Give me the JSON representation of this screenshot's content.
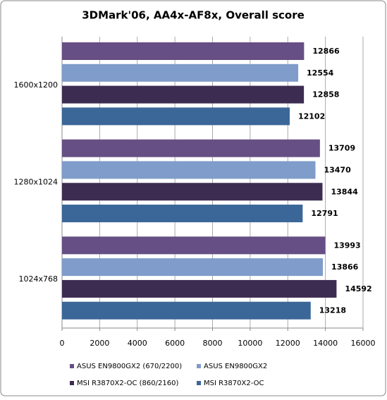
{
  "chart_data": {
    "type": "bar",
    "orientation": "horizontal",
    "title": "3DMark'06, AA4x-AF8x, Overall score",
    "categories": [
      "1600x1200",
      "1280x1024",
      "1024x768"
    ],
    "series": [
      {
        "name": "ASUS EN9800GX2 (670/2200)",
        "color": "#664f84",
        "values": [
          12866,
          13709,
          13993
        ]
      },
      {
        "name": "ASUS EN9800GX2",
        "color": "#7f9cca",
        "values": [
          12554,
          13470,
          13866
        ]
      },
      {
        "name": "MSI R3870X2-OC (860/2160)",
        "color": "#3d2c51",
        "values": [
          12858,
          13844,
          14592
        ]
      },
      {
        "name": "MSI R3870X2-OC",
        "color": "#3b6698",
        "values": [
          12102,
          12791,
          13218
        ]
      }
    ],
    "xlim": [
      0,
      16000
    ],
    "xticks": [
      0,
      2000,
      4000,
      6000,
      8000,
      10000,
      12000,
      14000,
      16000
    ],
    "grid": true
  }
}
